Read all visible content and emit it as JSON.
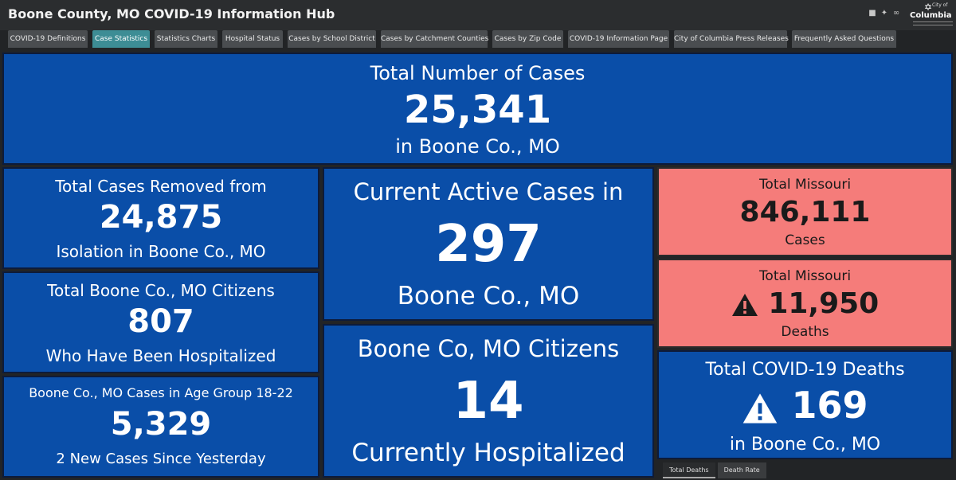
{
  "header": {
    "title": "Boone County, MO COVID-19 Information Hub"
  },
  "social": {
    "icons": [
      "facebook-icon",
      "twitter-icon",
      "link-icon"
    ]
  },
  "logo": {
    "city": "City of",
    "name": "Columbia"
  },
  "tabs": [
    {
      "label": "COVID-19 Definitions",
      "active": false
    },
    {
      "label": "Case Statistics",
      "active": true
    },
    {
      "label": "Statistics Charts",
      "active": false
    },
    {
      "label": "Hospital Status",
      "active": false
    },
    {
      "label": "Cases by School District",
      "active": false
    },
    {
      "label": "Cases by Catchment Counties",
      "active": false
    },
    {
      "label": "Cases by Zip Code",
      "active": false
    },
    {
      "label": "COVID-19 Information Page",
      "active": false
    },
    {
      "label": "City of Columbia Press Releases",
      "active": false
    },
    {
      "label": "Frequently Asked Questions",
      "active": false
    }
  ],
  "total_cases": {
    "line1": "Total Number of Cases",
    "value": "25,341",
    "line3": "in Boone Co., MO"
  },
  "removed": {
    "line1": "Total Cases Removed from",
    "value": "24,875",
    "line3": "Isolation in Boone Co., MO"
  },
  "hospitalized_total": {
    "line1": "Total Boone Co., MO Citizens",
    "value": "807",
    "line3": "Who Have Been Hospitalized"
  },
  "age_group": {
    "line1": "Boone Co., MO Cases in Age Group 18-22",
    "value": "5,329",
    "line3": "2 New Cases Since Yesterday"
  },
  "active": {
    "line1": "Current Active Cases in",
    "value": "297",
    "line3": "Boone Co., MO"
  },
  "current_hosp": {
    "line1": "Boone Co, MO Citizens",
    "value": "14",
    "line3": "Currently Hospitalized"
  },
  "missouri_cases": {
    "line1": "Total Missouri",
    "value": "846,111",
    "line3": "Cases"
  },
  "missouri_deaths": {
    "line1": "Total Missouri",
    "value": "11,950",
    "line3": "Deaths"
  },
  "boone_deaths": {
    "line1": "Total COVID-19 Deaths",
    "value": "169",
    "line3": "in Boone Co., MO"
  },
  "bottom_tabs": [
    {
      "label": "Total Deaths",
      "active": true
    },
    {
      "label": "Death Rate",
      "active": false
    }
  ],
  "colors": {
    "panel_blue": "#0a4ea8",
    "panel_red": "#f57c7a",
    "tab_active": "#3d8d95"
  }
}
